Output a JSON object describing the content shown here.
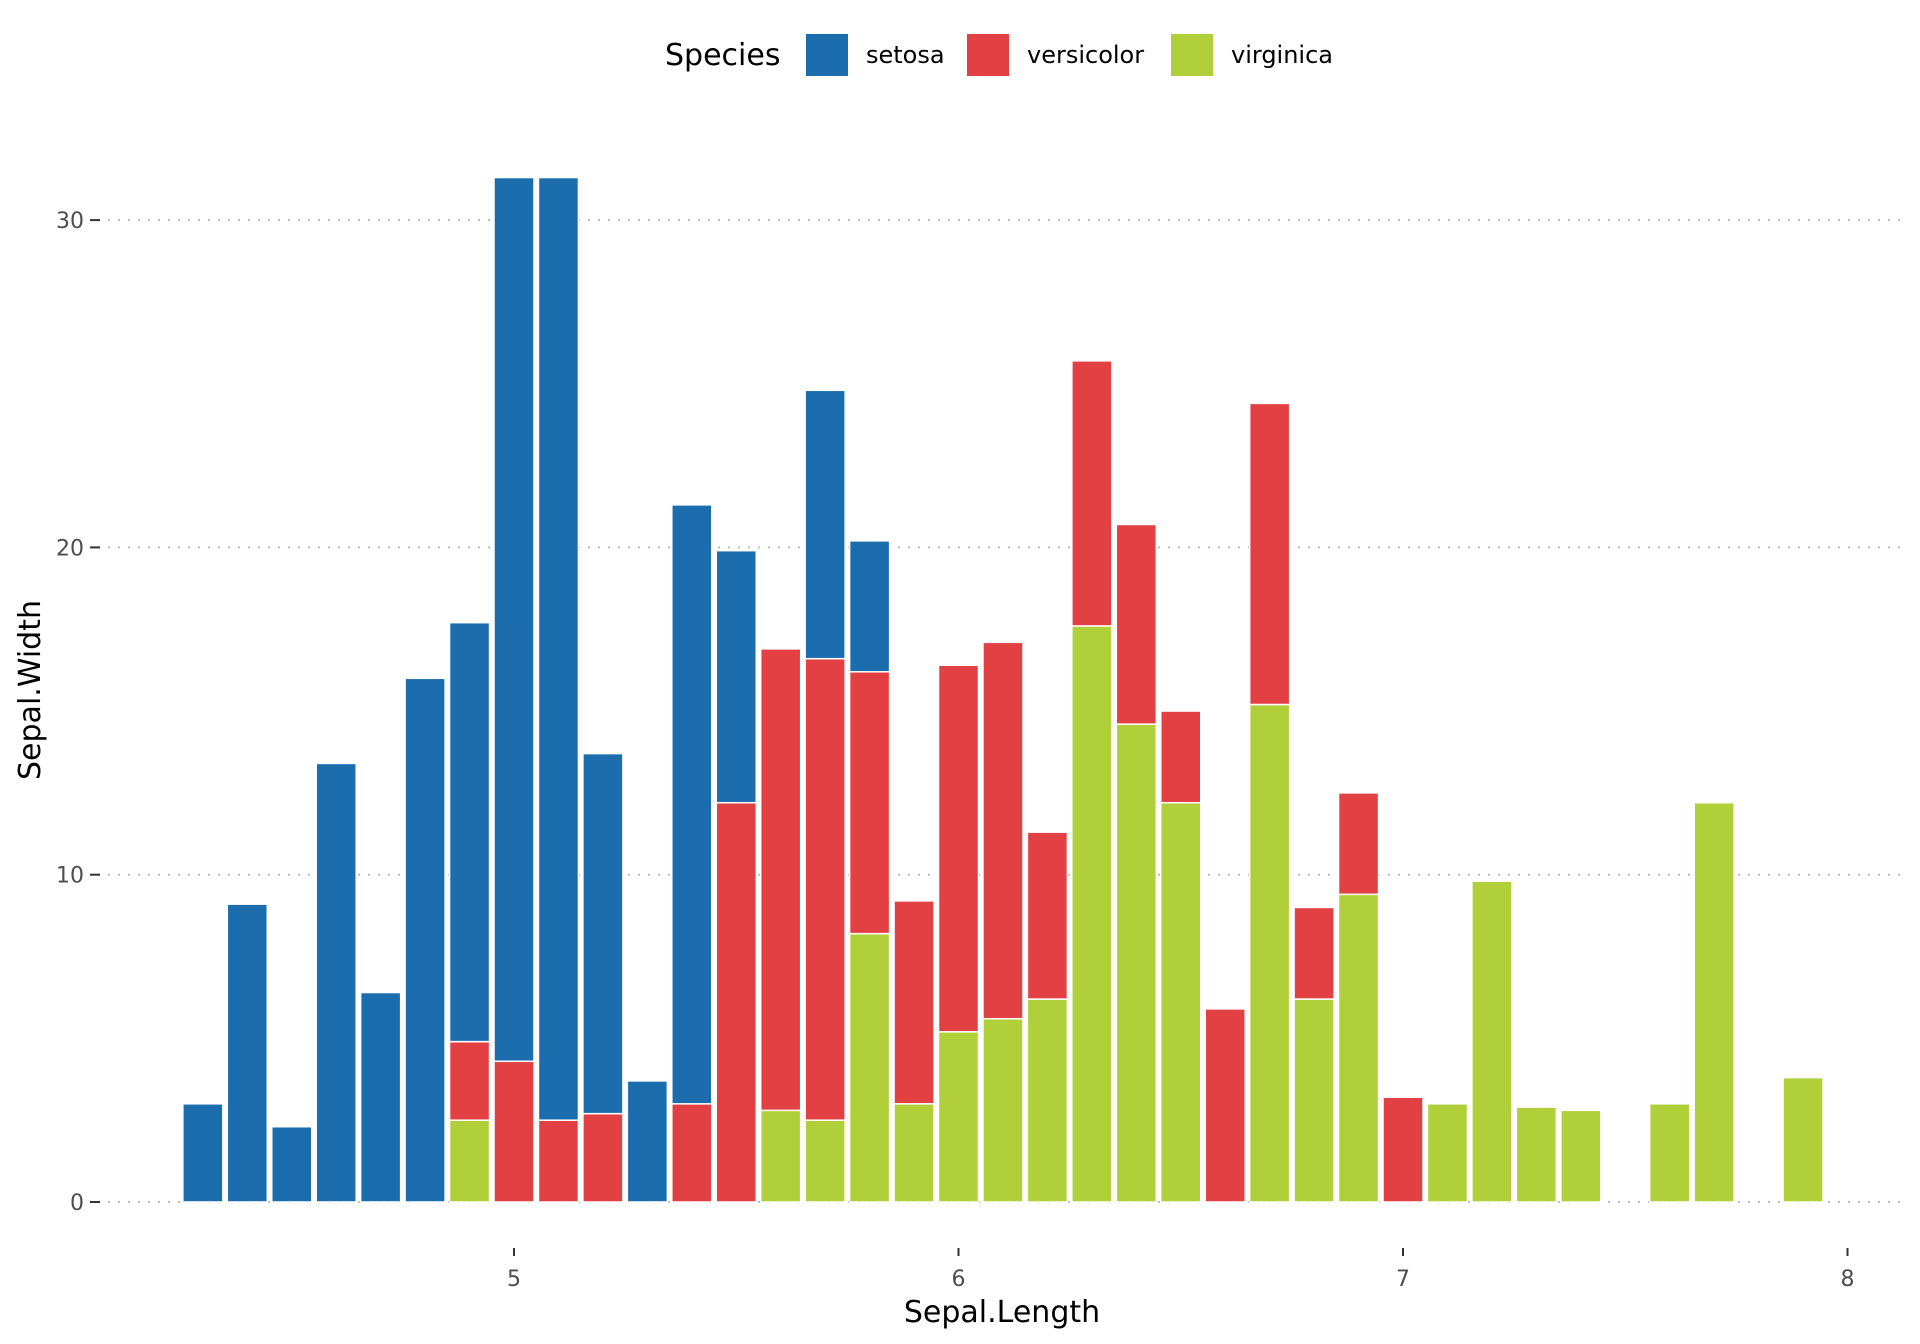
{
  "chart_data": {
    "type": "bar",
    "stacked": true,
    "xlabel": "Sepal.Length",
    "ylabel": "Sepal.Width",
    "xlim": [
      4.2,
      8.0
    ],
    "ylim": [
      0,
      33
    ],
    "x_ticks": [
      5,
      6,
      7,
      8
    ],
    "y_ticks": [
      0,
      10,
      20,
      30
    ],
    "grid": "horizontal-dotted",
    "legend": {
      "title": "Species",
      "position": "top"
    },
    "x": [
      4.3,
      4.4,
      4.5,
      4.6,
      4.7,
      4.8,
      4.9,
      5.0,
      5.1,
      5.2,
      5.3,
      5.4,
      5.5,
      5.6,
      5.7,
      5.8,
      5.9,
      6.0,
      6.1,
      6.2,
      6.3,
      6.4,
      6.5,
      6.6,
      6.7,
      6.8,
      6.9,
      7.0,
      7.1,
      7.2,
      7.3,
      7.4,
      7.6,
      7.7,
      7.9
    ],
    "series": [
      {
        "name": "virginica",
        "color": "#B0CF38",
        "values": [
          0,
          0,
          0,
          0,
          0,
          0,
          2.5,
          0,
          0,
          0,
          0,
          0,
          0,
          2.8,
          2.5,
          8.2,
          3.0,
          5.2,
          5.6,
          6.2,
          17.6,
          14.6,
          12.2,
          0,
          15.2,
          6.2,
          9.4,
          0,
          3.0,
          9.8,
          2.9,
          2.8,
          3.0,
          12.2,
          3.8
        ]
      },
      {
        "name": "versicolor",
        "color": "#E24043",
        "values": [
          0,
          0,
          0,
          0,
          0,
          0,
          2.4,
          4.3,
          2.5,
          2.7,
          0,
          3.0,
          12.2,
          14.1,
          14.1,
          8.0,
          6.2,
          11.2,
          11.5,
          5.1,
          8.1,
          6.1,
          2.8,
          5.9,
          9.2,
          2.8,
          3.1,
          3.2,
          0,
          0,
          0,
          0,
          0,
          0,
          0
        ]
      },
      {
        "name": "setosa",
        "color": "#1B6DAE",
        "values": [
          3.0,
          9.1,
          2.3,
          13.4,
          6.4,
          16.0,
          12.8,
          27.0,
          28.8,
          11.0,
          3.7,
          18.3,
          7.7,
          0,
          8.2,
          4.0,
          0,
          0,
          0,
          0,
          0,
          0,
          0,
          0,
          0,
          0,
          0,
          0,
          0,
          0,
          0,
          0,
          0,
          0,
          0
        ]
      }
    ],
    "legend_order": [
      "setosa",
      "versicolor",
      "virginica"
    ]
  }
}
